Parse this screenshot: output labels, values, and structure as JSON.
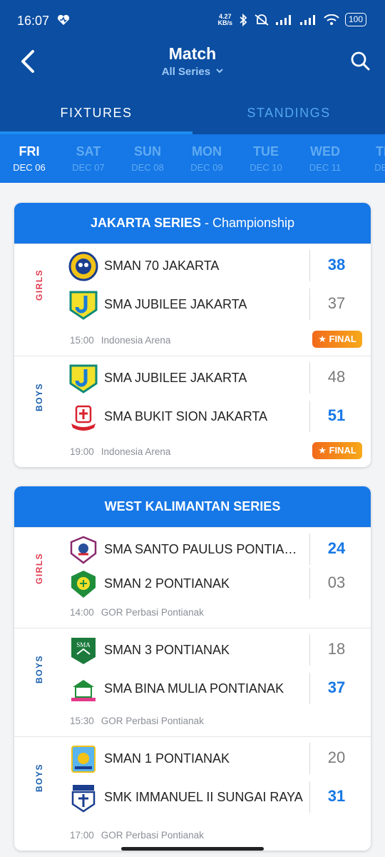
{
  "status_bar": {
    "time": "16:07",
    "net_speed": "4.27",
    "net_unit": "KB/s",
    "battery": "100"
  },
  "header": {
    "title": "Match",
    "series_selector": "All Series"
  },
  "tabs": [
    {
      "label": "FIXTURES",
      "active": true
    },
    {
      "label": "STANDINGS",
      "active": false
    }
  ],
  "days": [
    {
      "dow": "FRI",
      "date": "DEC 06",
      "active": true
    },
    {
      "dow": "SAT",
      "date": "DEC 07",
      "active": false
    },
    {
      "dow": "SUN",
      "date": "DEC 08",
      "active": false
    },
    {
      "dow": "MON",
      "date": "DEC 09",
      "active": false
    },
    {
      "dow": "TUE",
      "date": "DEC 10",
      "active": false
    },
    {
      "dow": "WED",
      "date": "DEC 11",
      "active": false
    },
    {
      "dow": "TH",
      "date": "DEC",
      "active": false
    }
  ],
  "sections": [
    {
      "series": "JAKARTA SERIES",
      "sub": " - Championship",
      "games": [
        {
          "gender": "GIRLS",
          "teams": [
            {
              "name": "SMAN 70 JAKARTA",
              "score": "38",
              "win": true,
              "logo": "sman70-logo"
            },
            {
              "name": "SMA JUBILEE JAKARTA",
              "score": "37",
              "win": false,
              "logo": "jubilee-logo"
            }
          ],
          "time": "15:00",
          "venue": "Indonesia Arena",
          "badge": "FINAL"
        },
        {
          "gender": "BOYS",
          "teams": [
            {
              "name": "SMA JUBILEE JAKARTA",
              "score": "48",
              "win": false,
              "logo": "jubilee-logo"
            },
            {
              "name": "SMA BUKIT SION JAKARTA",
              "score": "51",
              "win": true,
              "logo": "bukit-sion-logo"
            }
          ],
          "time": "19:00",
          "venue": "Indonesia Arena",
          "badge": "FINAL"
        }
      ]
    },
    {
      "series": "WEST KALIMANTAN SERIES",
      "sub": "",
      "games": [
        {
          "gender": "GIRLS",
          "teams": [
            {
              "name": "SMA SANTO PAULUS PONTIAN...",
              "score": "24",
              "win": true,
              "logo": "santo-paulus-logo"
            },
            {
              "name": "SMAN 2 PONTIANAK",
              "score": "03",
              "win": false,
              "logo": "sman2-logo"
            }
          ],
          "time": "14:00",
          "venue": "GOR Perbasi Pontianak",
          "badge": ""
        },
        {
          "gender": "BOYS",
          "teams": [
            {
              "name": "SMAN 3 PONTIANAK",
              "score": "18",
              "win": false,
              "logo": "sman3-logo"
            },
            {
              "name": "SMA BINA MULIA PONTIANAK",
              "score": "37",
              "win": true,
              "logo": "bina-mulia-logo"
            }
          ],
          "time": "15:30",
          "venue": "GOR Perbasi Pontianak",
          "badge": ""
        },
        {
          "gender": "BOYS",
          "teams": [
            {
              "name": "SMAN 1 PONTIANAK",
              "score": "20",
              "win": false,
              "logo": "sman1-logo"
            },
            {
              "name": "SMK  IMMANUEL II SUNGAI RAYA",
              "score": "31",
              "win": true,
              "logo": "immanuel-logo"
            }
          ],
          "time": "17:00",
          "venue": "GOR Perbasi Pontianak",
          "badge": ""
        }
      ]
    }
  ],
  "colors": {
    "primary": "#0b4ea2",
    "accent": "#1677e6",
    "girls": "#e03a4f",
    "boys": "#1a5fb0",
    "final_badge": "#f26a1b"
  }
}
